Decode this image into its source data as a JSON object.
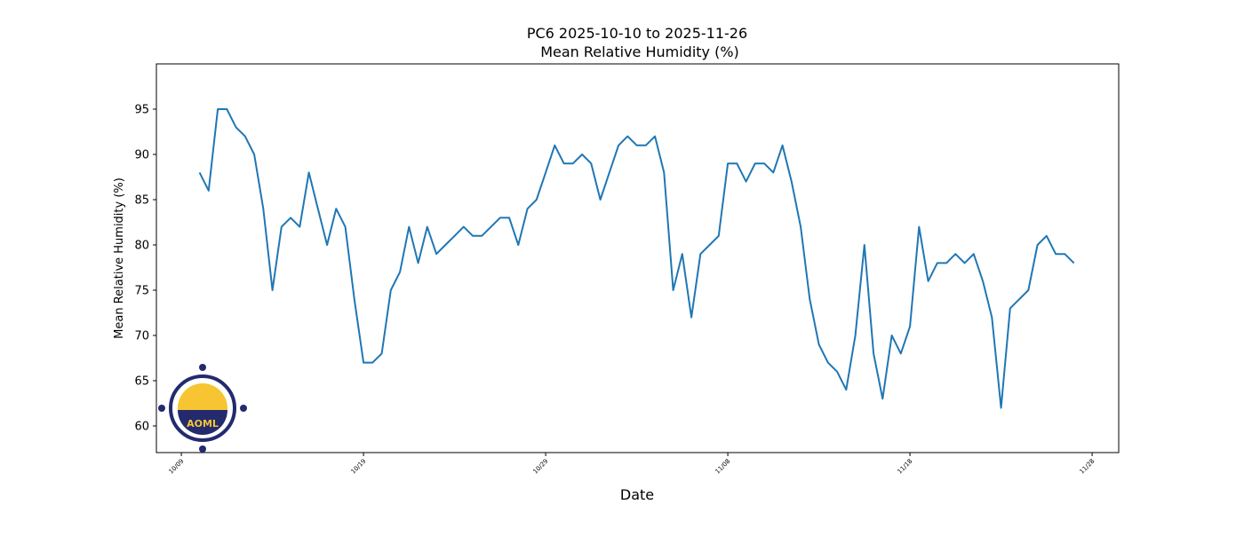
{
  "chart_data": {
    "type": "line",
    "title": "PC6 2025-10-10 to 2025-11-26",
    "subtitle": "Mean Relative Humidity (%)",
    "x_label": "Date",
    "y_label": "Mean Relative Humidity (%)",
    "logo": "AOML",
    "x": [
      283,
      283.5,
      284,
      284.5,
      285,
      285.5,
      286,
      286.5,
      287,
      287.5,
      288,
      288.5,
      289,
      289.5,
      290,
      290.5,
      291,
      291.5,
      292,
      292.5,
      293,
      293.5,
      294,
      294.5,
      295,
      295.5,
      296,
      296.5,
      297,
      297.5,
      298,
      298.5,
      299,
      299.5,
      300,
      300.5,
      301,
      301.5,
      302,
      302.5,
      303,
      303.5,
      304,
      304.5,
      305,
      305.5,
      306,
      306.5,
      307,
      307.5,
      308,
      308.5,
      309,
      309.5,
      310,
      310.5,
      311,
      311.5,
      312,
      312.5,
      313,
      313.5,
      314,
      314.5,
      315,
      315.5,
      316,
      316.5,
      317,
      317.5,
      318,
      318.5,
      319,
      319.5,
      320,
      320.5,
      321,
      321.5,
      322,
      322.5,
      323,
      323.5,
      324,
      324.5,
      325,
      325.5,
      326,
      326.5,
      327,
      327.5,
      328,
      328.5,
      329,
      329.5,
      330,
      330.5,
      331
    ],
    "series": [
      {
        "name": "Mean Relative Humidity",
        "color": "#1f77b4",
        "values": [
          88,
          86,
          95,
          95,
          93,
          92,
          90,
          84,
          75,
          82,
          83,
          82,
          88,
          84,
          80,
          84,
          82,
          74,
          67,
          67,
          68,
          75,
          77,
          82,
          78,
          82,
          79,
          80,
          81,
          82,
          81,
          81,
          82,
          83,
          83,
          80,
          84,
          85,
          88,
          91,
          89,
          89,
          90,
          89,
          85,
          88,
          91,
          92,
          91,
          91,
          92,
          88,
          75,
          79,
          72,
          79,
          80,
          81,
          89,
          89,
          87,
          89,
          89,
          88,
          91,
          87,
          82,
          74,
          69,
          67,
          66,
          64,
          70,
          80,
          68,
          63,
          70,
          68,
          71,
          82,
          76,
          78,
          78,
          79,
          78,
          79,
          76,
          72,
          62,
          73,
          74,
          75,
          80,
          81,
          79,
          79,
          78
        ]
      }
    ],
    "xlim": [
      280.63,
      333.46
    ],
    "ylim": [
      57.06,
      100
    ],
    "xticks": [
      {
        "value": 282,
        "label": "10/09"
      },
      {
        "value": 292,
        "label": "10/19"
      },
      {
        "value": 302,
        "label": "10/29"
      },
      {
        "value": 312,
        "label": "11/08"
      },
      {
        "value": 322,
        "label": "11/18"
      },
      {
        "value": 332,
        "label": "11/28"
      }
    ],
    "yticks": [
      60,
      65,
      70,
      75,
      80,
      85,
      90,
      95
    ],
    "grid": false
  }
}
